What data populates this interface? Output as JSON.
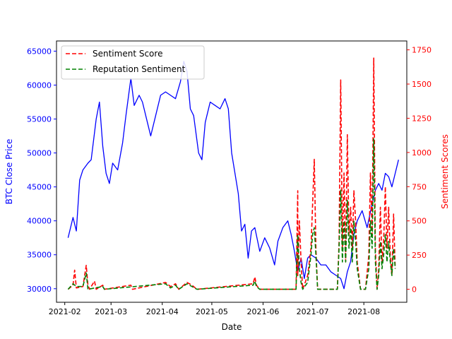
{
  "chart_data": {
    "type": "line",
    "xlabel": "Date",
    "ylabel_left": "BTC Close Price",
    "ylabel_right": "Sentiment Scores",
    "x_ticks": [
      "2021-02",
      "2021-03",
      "2021-04",
      "2021-05",
      "2021-06",
      "2021-07",
      "2021-08"
    ],
    "x_range": [
      "2021-01-27",
      "2021-08-27"
    ],
    "y_left_ticks": [
      30000,
      35000,
      40000,
      45000,
      50000,
      55000,
      60000,
      65000
    ],
    "y_left_range": [
      28000,
      66500
    ],
    "y_right_ticks": [
      0,
      250,
      500,
      750,
      1000,
      1250,
      1500,
      1750
    ],
    "y_right_range": [
      -95,
      1815
    ],
    "legend_position": "top-left",
    "colors": {
      "price": "#0000ff",
      "sentiment": "#ff0000",
      "reputation": "#008000",
      "left_axis": "#0000ff",
      "right_axis": "#ff0000"
    },
    "series": [
      {
        "name": "BTC Close Price",
        "axis": "left",
        "style": "solid",
        "color": "#0000ff",
        "points": [
          [
            "2021-02-03",
            37500
          ],
          [
            "2021-02-06",
            40500
          ],
          [
            "2021-02-08",
            38500
          ],
          [
            "2021-02-10",
            46000
          ],
          [
            "2021-02-12",
            47500
          ],
          [
            "2021-02-15",
            48500
          ],
          [
            "2021-02-17",
            49000
          ],
          [
            "2021-02-20",
            55000
          ],
          [
            "2021-02-22",
            57500
          ],
          [
            "2021-02-24",
            51000
          ],
          [
            "2021-02-26",
            47000
          ],
          [
            "2021-02-28",
            45500
          ],
          [
            "2021-03-02",
            48500
          ],
          [
            "2021-03-05",
            47500
          ],
          [
            "2021-03-08",
            51500
          ],
          [
            "2021-03-10",
            55500
          ],
          [
            "2021-03-13",
            61000
          ],
          [
            "2021-03-15",
            57000
          ],
          [
            "2021-03-18",
            58500
          ],
          [
            "2021-03-20",
            57500
          ],
          [
            "2021-03-23",
            54500
          ],
          [
            "2021-03-25",
            52500
          ],
          [
            "2021-03-28",
            55500
          ],
          [
            "2021-03-31",
            58500
          ],
          [
            "2021-04-03",
            59000
          ],
          [
            "2021-04-06",
            58500
          ],
          [
            "2021-04-09",
            58000
          ],
          [
            "2021-04-12",
            60500
          ],
          [
            "2021-04-14",
            63500
          ],
          [
            "2021-04-16",
            62000
          ],
          [
            "2021-04-18",
            56500
          ],
          [
            "2021-04-20",
            55500
          ],
          [
            "2021-04-23",
            50000
          ],
          [
            "2021-04-25",
            49000
          ],
          [
            "2021-04-27",
            54500
          ],
          [
            "2021-04-30",
            57500
          ],
          [
            "2021-05-03",
            57000
          ],
          [
            "2021-05-06",
            56500
          ],
          [
            "2021-05-09",
            58000
          ],
          [
            "2021-05-11",
            56500
          ],
          [
            "2021-05-13",
            50000
          ],
          [
            "2021-05-15",
            47000
          ],
          [
            "2021-05-17",
            44000
          ],
          [
            "2021-05-19",
            38500
          ],
          [
            "2021-05-21",
            39500
          ],
          [
            "2021-05-23",
            34500
          ],
          [
            "2021-05-25",
            38500
          ],
          [
            "2021-05-27",
            39000
          ],
          [
            "2021-05-30",
            35500
          ],
          [
            "2021-06-02",
            37500
          ],
          [
            "2021-06-05",
            36000
          ],
          [
            "2021-06-08",
            33500
          ],
          [
            "2021-06-10",
            37000
          ],
          [
            "2021-06-13",
            39000
          ],
          [
            "2021-06-16",
            40000
          ],
          [
            "2021-06-18",
            38000
          ],
          [
            "2021-06-20",
            35500
          ],
          [
            "2021-06-22",
            32500
          ],
          [
            "2021-06-24",
            34500
          ],
          [
            "2021-06-26",
            31500
          ],
          [
            "2021-06-28",
            34500
          ],
          [
            "2021-06-30",
            35000
          ],
          [
            "2021-07-03",
            34500
          ],
          [
            "2021-07-06",
            33500
          ],
          [
            "2021-07-09",
            33500
          ],
          [
            "2021-07-12",
            32500
          ],
          [
            "2021-07-15",
            32000
          ],
          [
            "2021-07-18",
            31500
          ],
          [
            "2021-07-20",
            30000
          ],
          [
            "2021-07-22",
            32500
          ],
          [
            "2021-07-24",
            34000
          ],
          [
            "2021-07-26",
            38000
          ],
          [
            "2021-07-28",
            40000
          ],
          [
            "2021-07-31",
            41500
          ],
          [
            "2021-08-03",
            39000
          ],
          [
            "2021-08-06",
            42500
          ],
          [
            "2021-08-08",
            44500
          ],
          [
            "2021-08-10",
            45500
          ],
          [
            "2021-08-12",
            44500
          ],
          [
            "2021-08-14",
            47000
          ],
          [
            "2021-08-16",
            46500
          ],
          [
            "2021-08-18",
            45000
          ],
          [
            "2021-08-20",
            47000
          ],
          [
            "2021-08-22",
            49000
          ]
        ]
      },
      {
        "name": "Sentiment Score",
        "axis": "right",
        "style": "dashed",
        "color": "#ff0000",
        "points": [
          [
            "2021-02-03",
            0
          ],
          [
            "2021-02-05",
            20
          ],
          [
            "2021-02-06",
            30
          ],
          [
            "2021-02-07",
            140
          ],
          [
            "2021-02-08",
            10
          ],
          [
            "2021-02-12",
            20
          ],
          [
            "2021-02-14",
            175
          ],
          [
            "2021-02-15",
            30
          ],
          [
            "2021-02-16",
            0
          ],
          [
            "2021-02-19",
            60
          ],
          [
            "2021-02-20",
            0
          ],
          [
            "2021-02-24",
            30
          ],
          [
            "2021-02-25",
            0
          ],
          [
            "2021-03-13",
            30
          ],
          [
            "2021-03-14",
            0
          ],
          [
            "2021-04-03",
            50
          ],
          [
            "2021-04-06",
            20
          ],
          [
            "2021-04-09",
            40
          ],
          [
            "2021-04-11",
            0
          ],
          [
            "2021-04-16",
            50
          ],
          [
            "2021-04-19",
            30
          ],
          [
            "2021-04-22",
            0
          ],
          [
            "2021-05-26",
            40
          ],
          [
            "2021-05-27",
            90
          ],
          [
            "2021-05-28",
            30
          ],
          [
            "2021-05-30",
            0
          ],
          [
            "2021-06-21",
            0
          ],
          [
            "2021-06-22",
            720
          ],
          [
            "2021-06-22",
            100
          ],
          [
            "2021-06-23",
            500
          ],
          [
            "2021-06-24",
            200
          ],
          [
            "2021-06-25",
            0
          ],
          [
            "2021-06-28",
            100
          ],
          [
            "2021-06-30",
            300
          ],
          [
            "2021-07-02",
            950
          ],
          [
            "2021-07-03",
            300
          ],
          [
            "2021-07-04",
            0
          ],
          [
            "2021-07-16",
            0
          ],
          [
            "2021-07-17",
            350
          ],
          [
            "2021-07-18",
            1530
          ],
          [
            "2021-07-19",
            300
          ],
          [
            "2021-07-20",
            850
          ],
          [
            "2021-07-21",
            200
          ],
          [
            "2021-07-22",
            1130
          ],
          [
            "2021-07-23",
            400
          ],
          [
            "2021-07-24",
            600
          ],
          [
            "2021-07-25",
            300
          ],
          [
            "2021-07-26",
            720
          ],
          [
            "2021-07-27",
            500
          ],
          [
            "2021-07-28",
            200
          ],
          [
            "2021-07-30",
            0
          ],
          [
            "2021-08-02",
            0
          ],
          [
            "2021-08-04",
            250
          ],
          [
            "2021-08-05",
            850
          ],
          [
            "2021-08-06",
            400
          ],
          [
            "2021-08-07",
            1690
          ],
          [
            "2021-08-08",
            300
          ],
          [
            "2021-08-09",
            0
          ],
          [
            "2021-08-10",
            150
          ],
          [
            "2021-08-11",
            600
          ],
          [
            "2021-08-12",
            200
          ],
          [
            "2021-08-13",
            350
          ],
          [
            "2021-08-14",
            750
          ],
          [
            "2021-08-15",
            300
          ],
          [
            "2021-08-16",
            600
          ],
          [
            "2021-08-17",
            250
          ],
          [
            "2021-08-18",
            100
          ],
          [
            "2021-08-19",
            550
          ],
          [
            "2021-08-20",
            150
          ]
        ]
      },
      {
        "name": "Reputation Sentiment",
        "axis": "right",
        "style": "dashed",
        "color": "#008000",
        "points": [
          [
            "2021-02-03",
            0
          ],
          [
            "2021-02-06",
            40
          ],
          [
            "2021-02-08",
            20
          ],
          [
            "2021-02-12",
            20
          ],
          [
            "2021-02-14",
            120
          ],
          [
            "2021-02-15",
            0
          ],
          [
            "2021-02-24",
            20
          ],
          [
            "2021-02-25",
            0
          ],
          [
            "2021-04-03",
            40
          ],
          [
            "2021-04-06",
            10
          ],
          [
            "2021-04-09",
            30
          ],
          [
            "2021-04-11",
            0
          ],
          [
            "2021-04-16",
            40
          ],
          [
            "2021-04-19",
            20
          ],
          [
            "2021-04-22",
            0
          ],
          [
            "2021-05-26",
            30
          ],
          [
            "2021-05-27",
            60
          ],
          [
            "2021-05-28",
            20
          ],
          [
            "2021-05-30",
            0
          ],
          [
            "2021-06-21",
            0
          ],
          [
            "2021-06-22",
            400
          ],
          [
            "2021-06-23",
            150
          ],
          [
            "2021-06-24",
            50
          ],
          [
            "2021-06-25",
            0
          ],
          [
            "2021-06-28",
            50
          ],
          [
            "2021-06-30",
            250
          ],
          [
            "2021-07-01",
            400
          ],
          [
            "2021-07-02",
            450
          ],
          [
            "2021-07-03",
            250
          ],
          [
            "2021-07-04",
            0
          ],
          [
            "2021-07-16",
            0
          ],
          [
            "2021-07-17",
            300
          ],
          [
            "2021-07-18",
            730
          ],
          [
            "2021-07-19",
            200
          ],
          [
            "2021-07-20",
            500
          ],
          [
            "2021-07-21",
            200
          ],
          [
            "2021-07-22",
            650
          ],
          [
            "2021-07-23",
            300
          ],
          [
            "2021-07-24",
            450
          ],
          [
            "2021-07-25",
            200
          ],
          [
            "2021-07-26",
            500
          ],
          [
            "2021-07-27",
            350
          ],
          [
            "2021-07-28",
            150
          ],
          [
            "2021-07-30",
            0
          ],
          [
            "2021-08-02",
            0
          ],
          [
            "2021-08-04",
            150
          ],
          [
            "2021-08-05",
            500
          ],
          [
            "2021-08-06",
            300
          ],
          [
            "2021-08-07",
            1100
          ],
          [
            "2021-08-08",
            200
          ],
          [
            "2021-08-09",
            0
          ],
          [
            "2021-08-10",
            100
          ],
          [
            "2021-08-11",
            350
          ],
          [
            "2021-08-12",
            150
          ],
          [
            "2021-08-13",
            250
          ],
          [
            "2021-08-14",
            400
          ],
          [
            "2021-08-15",
            200
          ],
          [
            "2021-08-16",
            350
          ],
          [
            "2021-08-17",
            200
          ],
          [
            "2021-08-18",
            100
          ],
          [
            "2021-08-19",
            300
          ],
          [
            "2021-08-20",
            150
          ]
        ]
      }
    ]
  }
}
